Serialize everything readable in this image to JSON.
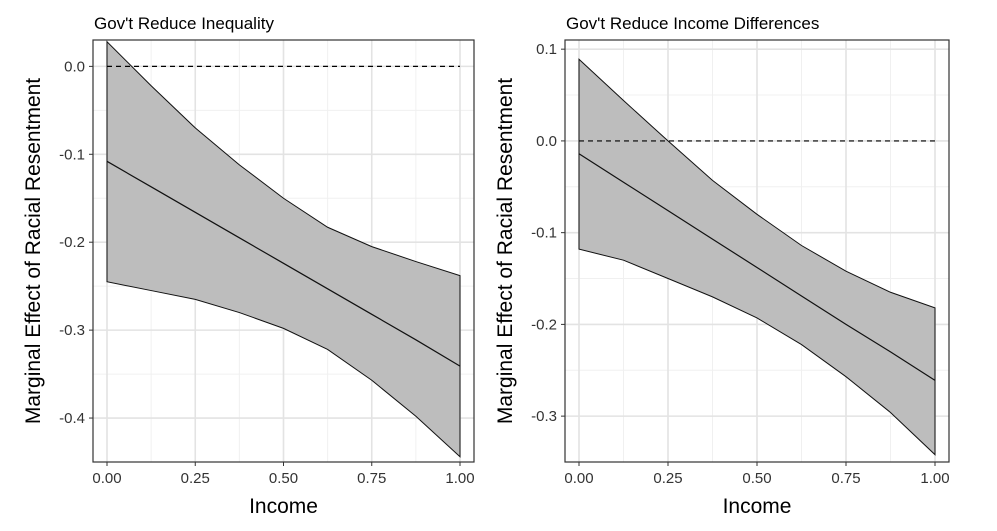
{
  "chart_data": [
    {
      "type": "line",
      "title": "Gov't Reduce Inequality",
      "xlabel": "Income",
      "ylabel": "Marginal Effect of Racial Resentment",
      "xlim": [
        0,
        1
      ],
      "ylim": [
        -0.45,
        0.03
      ],
      "x_ticks": [
        0,
        0.25,
        0.5,
        0.75,
        1
      ],
      "x_tick_labels": [
        "0.00",
        "0.25",
        "0.50",
        "0.75",
        "1.00"
      ],
      "y_ticks": [
        0.0,
        -0.1,
        -0.2,
        -0.3,
        -0.4
      ],
      "y_tick_labels": [
        "0.0",
        "-0.1",
        "-0.2",
        "-0.3",
        "-0.4"
      ],
      "reference_line": 0,
      "grid": true,
      "series": [
        {
          "x": [
            0,
            0.125,
            0.25,
            0.375,
            0.5,
            0.625,
            0.75,
            0.875,
            1
          ],
          "estimate": [
            -0.108,
            -0.137,
            -0.166,
            -0.195,
            -0.224,
            -0.253,
            -0.282,
            -0.311,
            -0.341
          ],
          "upper": [
            0.028,
            -0.022,
            -0.07,
            -0.112,
            -0.15,
            -0.183,
            -0.205,
            -0.222,
            -0.238
          ],
          "lower": [
            -0.245,
            -0.255,
            -0.265,
            -0.28,
            -0.298,
            -0.322,
            -0.357,
            -0.398,
            -0.444
          ]
        }
      ]
    },
    {
      "type": "line",
      "title": "Gov't Reduce Income Differences",
      "xlabel": "Income",
      "ylabel": "Marginal Effect of Racial Resentment",
      "xlim": [
        0,
        1
      ],
      "ylim": [
        -0.35,
        0.11
      ],
      "x_ticks": [
        0,
        0.25,
        0.5,
        0.75,
        1
      ],
      "x_tick_labels": [
        "0.00",
        "0.25",
        "0.50",
        "0.75",
        "1.00"
      ],
      "y_ticks": [
        0.1,
        0.0,
        -0.1,
        -0.2,
        -0.3
      ],
      "y_tick_labels": [
        "0.1",
        "0.0",
        "-0.1",
        "-0.2",
        "-0.3"
      ],
      "reference_line": 0,
      "grid": true,
      "series": [
        {
          "x": [
            0,
            0.125,
            0.25,
            0.375,
            0.5,
            0.625,
            0.75,
            0.875,
            1
          ],
          "estimate": [
            -0.014,
            -0.045,
            -0.076,
            -0.107,
            -0.138,
            -0.169,
            -0.2,
            -0.23,
            -0.261
          ],
          "upper": [
            0.089,
            0.044,
            0.0,
            -0.043,
            -0.08,
            -0.114,
            -0.142,
            -0.165,
            -0.182
          ],
          "lower": [
            -0.118,
            -0.13,
            -0.15,
            -0.17,
            -0.193,
            -0.222,
            -0.257,
            -0.296,
            -0.342
          ]
        }
      ]
    }
  ]
}
